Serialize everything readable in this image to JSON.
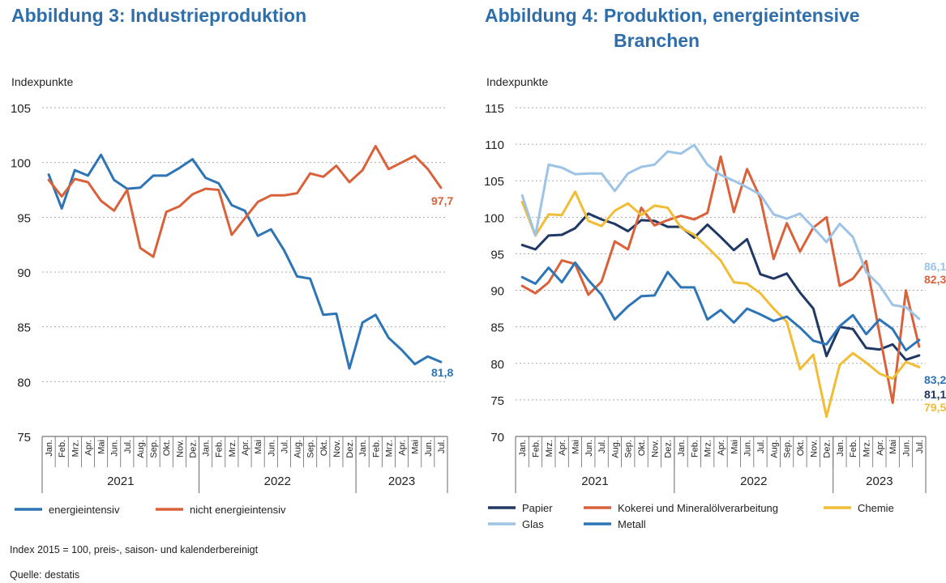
{
  "chart_data": [
    {
      "type": "line",
      "title": "Abbildung 3: Industrieproduktion",
      "ylabel": "Indexpunkte",
      "ylim": [
        75,
        105
      ],
      "yticks": [
        "105",
        "100",
        "95",
        "90",
        "85",
        "80",
        "75"
      ],
      "months": [
        "Jan.",
        "Feb.",
        "Mrz.",
        "Apr.",
        "Mai",
        "Jun.",
        "Jul.",
        "Aug.",
        "Sep.",
        "Okt.",
        "Nov.",
        "Dez.",
        "Jan.",
        "Feb.",
        "Mrz.",
        "Apr.",
        "Mai",
        "Jun.",
        "Jul.",
        "Aug.",
        "Sep.",
        "Okt.",
        "Nov.",
        "Dez.",
        "Jan.",
        "Feb.",
        "Mrz.",
        "Apr.",
        "Mai",
        "Jun.",
        "Jul."
      ],
      "years": [
        {
          "label": "2021",
          "start": 0,
          "end": 11
        },
        {
          "label": "2022",
          "start": 12,
          "end": 23
        },
        {
          "label": "2023",
          "start": 24,
          "end": 30
        }
      ],
      "series": [
        {
          "name": "energieintensiv",
          "color": "#2e75b6",
          "end_label": "81,8",
          "values": [
            98.9,
            95.8,
            99.3,
            98.8,
            100.7,
            98.4,
            97.6,
            97.7,
            98.8,
            98.8,
            99.5,
            100.3,
            98.6,
            98.1,
            96.1,
            95.6,
            93.3,
            93.9,
            92.0,
            89.6,
            89.4,
            86.1,
            86.2,
            81.2,
            85.4,
            86.1,
            84.0,
            82.9,
            81.6,
            82.3,
            81.8
          ]
        },
        {
          "name": "nicht energieintensiv",
          "color": "#d9623b",
          "end_label": "97,7",
          "values": [
            98.4,
            96.9,
            98.5,
            98.2,
            96.5,
            95.6,
            97.5,
            92.2,
            91.4,
            95.5,
            96.0,
            97.1,
            97.6,
            97.5,
            93.4,
            94.9,
            96.4,
            97.0,
            97.0,
            97.2,
            99.0,
            98.7,
            99.7,
            98.2,
            99.3,
            101.5,
            99.4,
            100.0,
            100.6,
            99.4,
            97.7
          ]
        }
      ]
    },
    {
      "type": "line",
      "title_line1": "Abbildung 4: Produktion, energieintensive",
      "title_line2": "Branchen",
      "ylabel": "Indexpunkte",
      "ylim": [
        70,
        115
      ],
      "yticks": [
        "115",
        "110",
        "105",
        "100",
        "95",
        "90",
        "85",
        "80",
        "75",
        "70"
      ],
      "months": [
        "Jan.",
        "Feb.",
        "Mrz.",
        "Apr.",
        "Mai",
        "Jun.",
        "Jul.",
        "Aug.",
        "Sep.",
        "Okt.",
        "Nov.",
        "Dez.",
        "Jan.",
        "Feb.",
        "Mrz.",
        "Apr.",
        "Mai",
        "Jun.",
        "Jul.",
        "Aug.",
        "Sep.",
        "Okt.",
        "Nov.",
        "Dez.",
        "Jan.",
        "Feb.",
        "Mrz.",
        "Apr.",
        "Mai",
        "Jun.",
        "Jul."
      ],
      "years": [
        {
          "label": "2021",
          "start": 0,
          "end": 11
        },
        {
          "label": "2022",
          "start": 12,
          "end": 23
        },
        {
          "label": "2023",
          "start": 24,
          "end": 30
        }
      ],
      "series": [
        {
          "name": "Papier",
          "color": "#1f3864",
          "end_label": "81,1",
          "values": [
            96.2,
            95.6,
            97.5,
            97.6,
            98.5,
            100.5,
            99.7,
            99.1,
            98.1,
            99.6,
            99.5,
            98.7,
            98.7,
            97.2,
            99.0,
            97.3,
            95.5,
            97.0,
            92.2,
            91.6,
            92.3,
            89.7,
            87.5,
            81.0,
            85.0,
            84.7,
            82.1,
            81.9,
            82.6,
            80.5,
            81.1
          ]
        },
        {
          "name": "Kokerei und Mineralölverarbeitung",
          "color": "#d9623b",
          "end_label": "82,3",
          "values": [
            90.6,
            89.6,
            91.1,
            94.1,
            93.6,
            89.4,
            91.2,
            96.7,
            95.6,
            101.3,
            98.9,
            99.6,
            100.2,
            99.7,
            100.6,
            108.3,
            100.7,
            106.6,
            102.6,
            94.3,
            99.2,
            95.3,
            98.6,
            100.0,
            90.6,
            91.6,
            94.0,
            84.1,
            74.6,
            90.0,
            82.3
          ]
        },
        {
          "name": "Chemie",
          "color": "#f2bd35",
          "end_label": "79,5",
          "values": [
            102.1,
            97.5,
            100.4,
            100.3,
            103.5,
            99.5,
            98.8,
            100.9,
            101.9,
            100.3,
            101.6,
            101.3,
            98.6,
            97.6,
            95.9,
            94.1,
            91.1,
            90.9,
            89.6,
            87.5,
            85.7,
            79.2,
            81.2,
            72.7,
            79.8,
            81.4,
            80.1,
            78.6,
            77.9,
            80.2,
            79.5
          ]
        },
        {
          "name": "Glas",
          "color": "#9dc3e6",
          "end_label": "86,1",
          "values": [
            103.0,
            97.5,
            107.2,
            106.8,
            105.9,
            106.0,
            106.0,
            103.6,
            106.0,
            106.9,
            107.2,
            109.0,
            108.7,
            109.9,
            107.2,
            105.8,
            105.0,
            104.1,
            103.1,
            100.4,
            99.8,
            100.5,
            98.6,
            96.6,
            99.1,
            97.3,
            92.5,
            90.7,
            88.0,
            87.7,
            86.1
          ]
        },
        {
          "name": "Metall",
          "color": "#2e75b6",
          "end_label": "83,2",
          "values": [
            91.8,
            90.9,
            93.1,
            91.1,
            93.8,
            91.4,
            89.4,
            86.0,
            87.8,
            89.2,
            89.3,
            92.5,
            90.4,
            90.4,
            86.0,
            87.3,
            85.6,
            87.5,
            86.7,
            85.8,
            86.4,
            84.9,
            83.1,
            82.6,
            85.1,
            86.6,
            84.0,
            86.0,
            84.7,
            81.8,
            83.2
          ]
        }
      ]
    }
  ],
  "footer": {
    "note": "Index 2015 = 100, preis-, saison- und kalenderbereinigt",
    "source": "Quelle: destatis"
  }
}
